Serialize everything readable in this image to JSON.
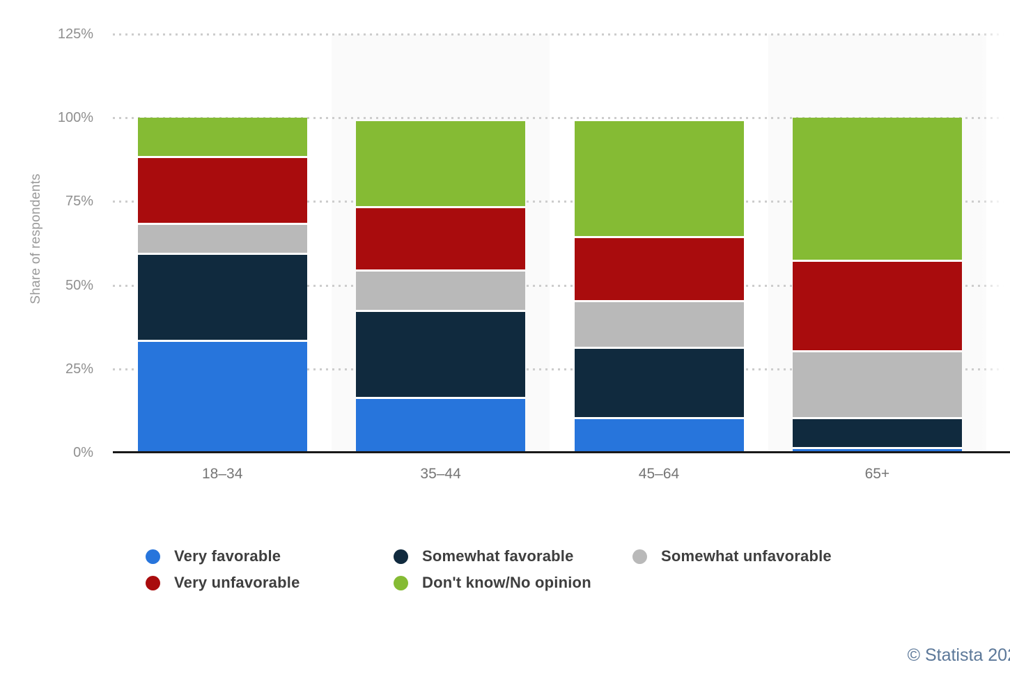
{
  "chart_data": {
    "type": "bar",
    "stacked": true,
    "title": "",
    "categories": [
      "18–34",
      "35–44",
      "45–64",
      "65+"
    ],
    "series": [
      {
        "name": "Very favorable",
        "color": "#2775dc",
        "values": [
          33,
          16,
          10,
          1
        ]
      },
      {
        "name": "Somewhat favorable",
        "color": "#102a3e",
        "values": [
          26,
          26,
          21,
          9
        ]
      },
      {
        "name": "Somewhat unfavorable",
        "color": "#b9b9b9",
        "values": [
          9,
          12,
          14,
          20
        ]
      },
      {
        "name": "Very unfavorable",
        "color": "#a90c0d",
        "values": [
          20,
          19,
          19,
          27
        ]
      },
      {
        "name": "Don't know/No opinion",
        "color": "#85bb34",
        "values": [
          12,
          26,
          35,
          43
        ]
      }
    ],
    "xlabel": "",
    "ylabel": "Share of respondents",
    "ylim": [
      0,
      125
    ],
    "y_ticks": [
      0,
      25,
      50,
      75,
      100,
      125
    ],
    "y_tick_suffix": "%",
    "grid": "dotted-horizontal",
    "plot_band_fill": "#fafafa",
    "legend_position": "bottom",
    "legend_columns": 3
  },
  "footer": {
    "credit": "© Statista 202"
  }
}
